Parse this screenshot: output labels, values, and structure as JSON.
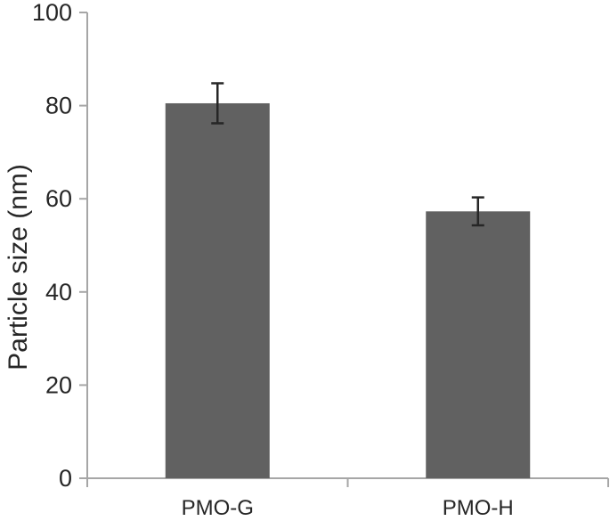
{
  "figure": {
    "background_color": "#ffffff"
  },
  "chart_data": {
    "type": "bar",
    "title": "",
    "xlabel": "",
    "ylabel": "Particle size (nm)",
    "categories": [
      "PMO-G",
      "PMO-H"
    ],
    "series": [
      {
        "name": "Particle size",
        "values": [
          80.5,
          57.3
        ],
        "errors": [
          4.3,
          3.0
        ]
      }
    ],
    "ylim": [
      0,
      100
    ],
    "yticks": [
      0,
      20,
      40,
      60,
      80,
      100
    ],
    "grid": false,
    "legend": false,
    "bar_width_fraction": 0.4,
    "colors": {
      "bar_fill": "#616161",
      "axis_line": "#a6a6a6",
      "error_bar": "#262626",
      "tick_label": "#262626",
      "axis_title": "#262626"
    }
  }
}
